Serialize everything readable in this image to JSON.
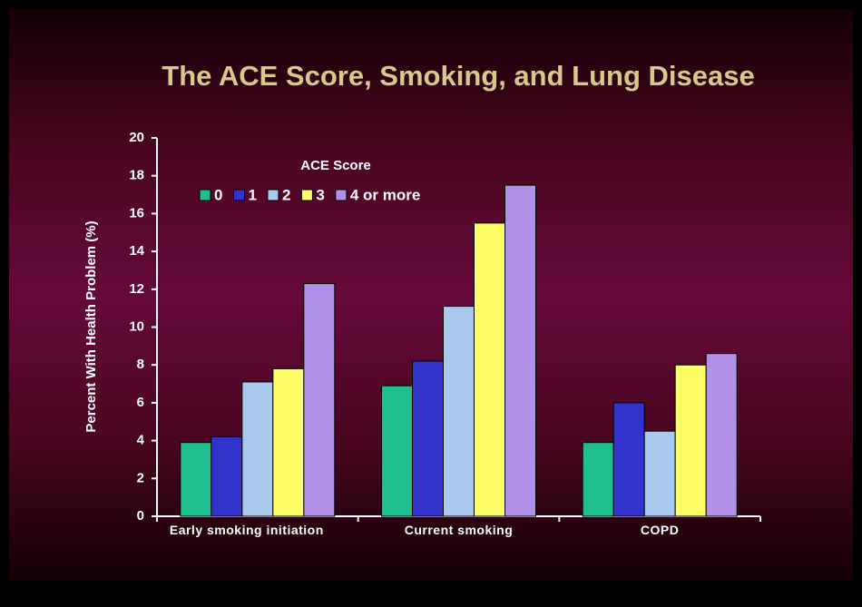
{
  "chart_data": {
    "type": "bar",
    "title": "The ACE Score, Smoking, and Lung Disease",
    "y_label": "Percent With Health Problem  (%)",
    "legend_title": "ACE Score",
    "categories": [
      "Early smoking initiation",
      "Current smoking",
      "COPD"
    ],
    "series": [
      {
        "name": "0",
        "color": "#1fbf8f",
        "values": [
          3.9,
          6.9,
          3.9
        ]
      },
      {
        "name": "1",
        "color": "#3232cc",
        "values": [
          4.2,
          8.2,
          6.0
        ]
      },
      {
        "name": "2",
        "color": "#a8c8ee",
        "values": [
          7.1,
          11.1,
          4.5
        ]
      },
      {
        "name": "3",
        "color": "#ffff66",
        "values": [
          7.8,
          15.5,
          8.0
        ]
      },
      {
        "name": "4 or more",
        "color": "#b090e8",
        "values": [
          12.3,
          17.5,
          8.6
        ]
      }
    ],
    "ylim": [
      0,
      20
    ],
    "yticks": [
      0,
      2,
      4,
      6,
      8,
      10,
      12,
      14,
      16,
      18,
      20
    ]
  }
}
